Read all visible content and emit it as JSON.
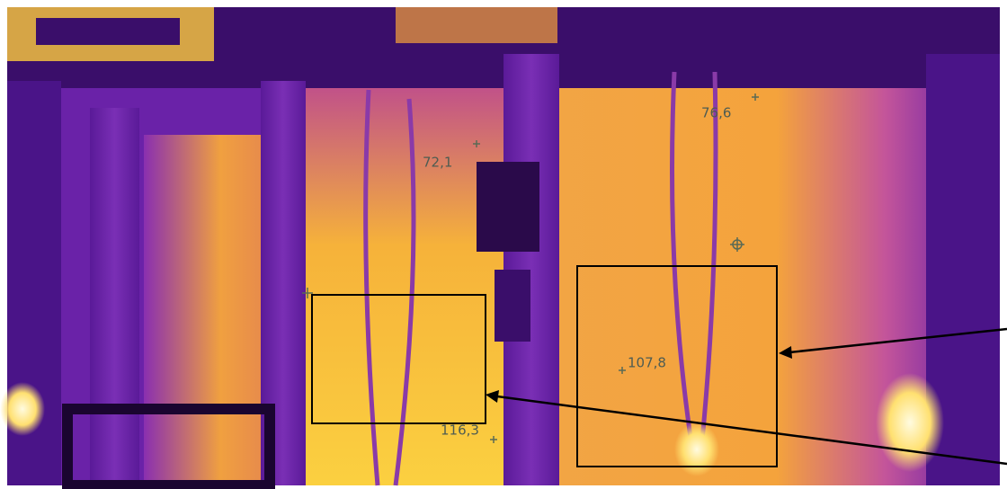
{
  "annotations": [
    {
      "label": "72,1"
    },
    {
      "label": "76,6"
    },
    {
      "label": "107,8"
    },
    {
      "label": "116,3"
    }
  ]
}
